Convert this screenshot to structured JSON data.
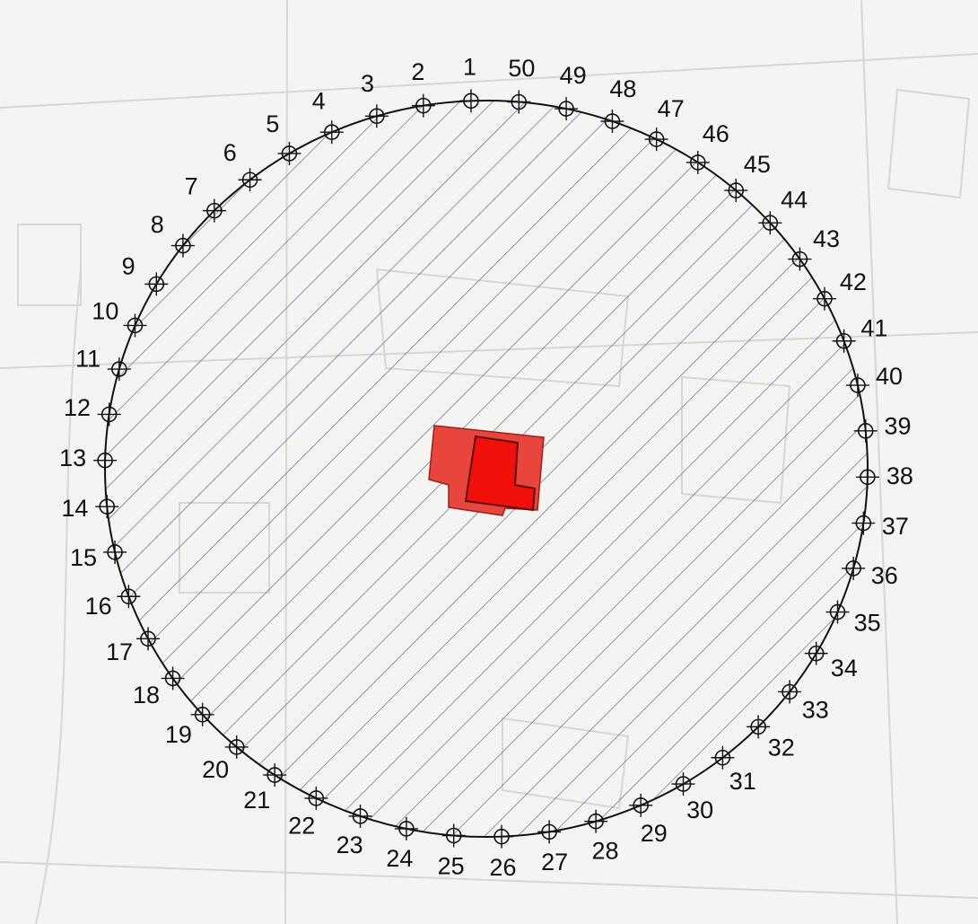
{
  "points": [
    "1",
    "2",
    "3",
    "4",
    "5",
    "6",
    "7",
    "8",
    "9",
    "10",
    "11",
    "12",
    "13",
    "14",
    "15",
    "16",
    "17",
    "18",
    "19",
    "20",
    "21",
    "22",
    "23",
    "24",
    "25",
    "26",
    "27",
    "28",
    "29",
    "30",
    "31",
    "32",
    "33",
    "34",
    "35",
    "36",
    "37",
    "38",
    "39",
    "40",
    "41",
    "42",
    "43",
    "44",
    "45",
    "46",
    "47",
    "48",
    "49",
    "50"
  ]
}
